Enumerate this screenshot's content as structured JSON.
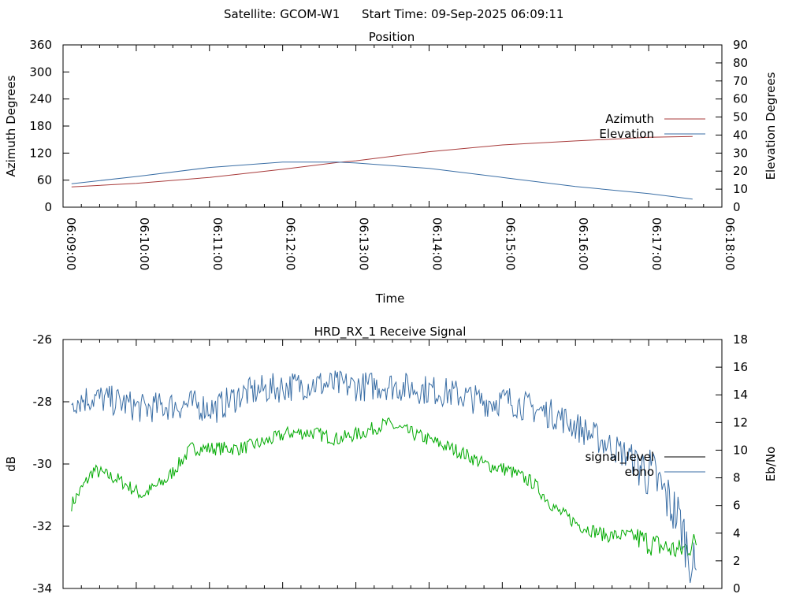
{
  "header": {
    "satellite": "Satellite: GCOM-W1",
    "start_time": "Start Time: 09-Sep-2025 06:09:11"
  },
  "chart_data": [
    {
      "type": "line",
      "title": "Position",
      "xlabel": "Time",
      "ylabel": "Azimuth Degrees",
      "y2label": "Elevation Degrees",
      "x_ticks": [
        "06:09:00",
        "06:10:00",
        "06:11:00",
        "06:12:00",
        "06:13:00",
        "06:14:00",
        "06:15:00",
        "06:16:00",
        "06:17:00",
        "06:18:00"
      ],
      "xlim_seconds_after_0609": [
        0,
        540
      ],
      "ylim": [
        0,
        360
      ],
      "y_ticks": [
        "0",
        "60",
        "120",
        "180",
        "240",
        "300",
        "360"
      ],
      "y2lim": [
        0,
        90
      ],
      "y2_ticks": [
        "0",
        "10",
        "20",
        "30",
        "40",
        "50",
        "60",
        "70",
        "80",
        "90"
      ],
      "legend_position": "right",
      "series": [
        {
          "name": "Azimuth",
          "axis": "left",
          "color": "#a83b3b",
          "x": [
            "06:09:07",
            "06:10:00",
            "06:11:00",
            "06:12:00",
            "06:12:45",
            "06:13:00",
            "06:14:00",
            "06:15:00",
            "06:16:00",
            "06:17:00",
            "06:17:36"
          ],
          "values": [
            45,
            53,
            66,
            84,
            99,
            103,
            123,
            138,
            147,
            155,
            157
          ]
        },
        {
          "name": "Elevation",
          "axis": "right",
          "color": "#3a6ea5",
          "x": [
            "06:09:07",
            "06:10:00",
            "06:11:00",
            "06:12:00",
            "06:12:45",
            "06:13:00",
            "06:14:00",
            "06:15:00",
            "06:16:00",
            "06:17:00",
            "06:17:36"
          ],
          "values": [
            13,
            17,
            22,
            25,
            25,
            24.5,
            21.5,
            16.5,
            11.5,
            7.5,
            4.5
          ]
        }
      ]
    },
    {
      "type": "line",
      "title": "HRD_RX_1 Receive Signal",
      "ylabel": "dB",
      "y2label": "Eb/No",
      "ylim": [
        -34,
        -26
      ],
      "y_ticks": [
        "-34",
        "-32",
        "-30",
        "-28",
        "-26"
      ],
      "y2lim": [
        0,
        18
      ],
      "y2_ticks": [
        "0",
        "2",
        "4",
        "6",
        "8",
        "10",
        "12",
        "14",
        "16",
        "18"
      ],
      "legend_position": "right",
      "series": [
        {
          "name": "signal_level",
          "axis": "left",
          "color": "#00aa00",
          "legend_color": "#000000",
          "x_seconds_after_0609": [
            7,
            25,
            45,
            65,
            85,
            105,
            125,
            145,
            165,
            185,
            205,
            225,
            245,
            265,
            285,
            305,
            325,
            345,
            365,
            385,
            405,
            425,
            445,
            465,
            485,
            505,
            520
          ],
          "values": [
            -31.3,
            -30.2,
            -30.5,
            -31.0,
            -30.5,
            -29.5,
            -29.5,
            -29.5,
            -29.3,
            -29.0,
            -29.0,
            -29.2,
            -29.0,
            -28.7,
            -29.0,
            -29.3,
            -29.6,
            -30.0,
            -30.2,
            -30.6,
            -31.5,
            -32.0,
            -32.3,
            -32.3,
            -32.6,
            -32.8,
            -32.5
          ]
        },
        {
          "name": "ebno",
          "axis": "right",
          "color": "#3a6ea5",
          "x_seconds_after_0609": [
            7,
            25,
            45,
            65,
            85,
            105,
            125,
            145,
            165,
            185,
            205,
            225,
            245,
            265,
            285,
            305,
            325,
            345,
            365,
            385,
            405,
            425,
            445,
            465,
            485,
            505,
            520
          ],
          "values": [
            13.6,
            13.8,
            13.5,
            13.0,
            13.2,
            13.3,
            13.0,
            14.0,
            14.4,
            14.6,
            14.8,
            14.7,
            14.6,
            14.7,
            14.5,
            14.3,
            14.0,
            13.5,
            13.6,
            13.0,
            12.5,
            11.5,
            10.5,
            9.5,
            8.0,
            5.0,
            0.5
          ]
        }
      ]
    }
  ]
}
